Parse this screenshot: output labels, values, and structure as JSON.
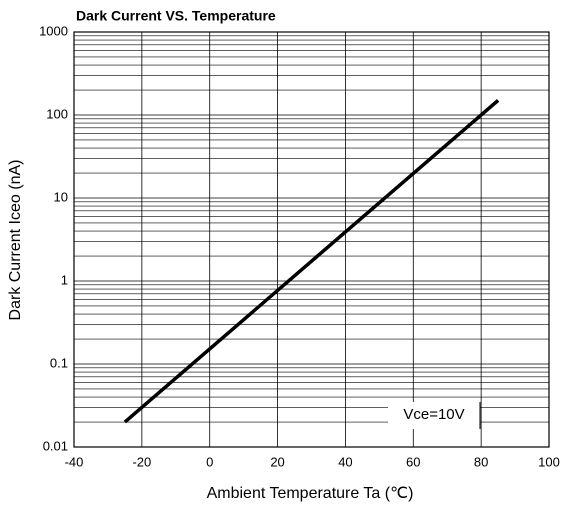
{
  "chart_data": {
    "type": "line",
    "title": "Dark Current VS. Temperature",
    "x_label": "Ambient Temperature Ta (℃)",
    "y_label": "Dark Current Iceo (nA)",
    "x": [
      -25,
      85
    ],
    "values": [
      0.02,
      150
    ],
    "color": "#000000",
    "xlim": [
      -40,
      100
    ],
    "xticks": [
      -40,
      -20,
      0,
      20,
      40,
      60,
      80,
      100
    ],
    "ylim": [
      0.01,
      1000
    ],
    "yticks": [
      0.01,
      0.1,
      1,
      10,
      100,
      1000
    ],
    "log_y": true,
    "grid": true,
    "annotation": "Vce=10V"
  }
}
